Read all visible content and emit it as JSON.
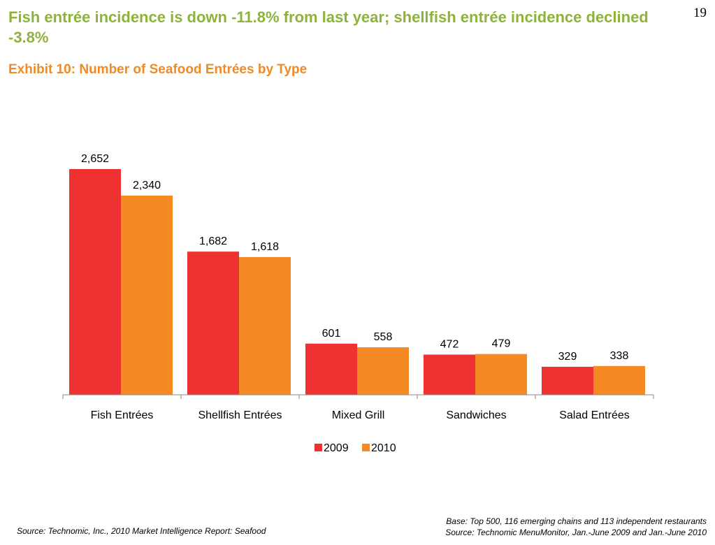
{
  "slide": {
    "headline": "Fish entrée incidence is down -11.8% from last year; shellfish entrée incidence declined -3.8%",
    "page_number": "19",
    "exhibit_title": "Exhibit 10: Number of Seafood Entrées by Type",
    "source_left": "Source: Technomic, Inc., 2010 Market Intelligence Report: Seafood",
    "base_note": "Base: Top 500, 116 emerging chains and 113 independent restaurants",
    "source_right": "Source: Technomic MenuMonitor, Jan.-June 2009 and Jan.-June 2010"
  },
  "chart_data": {
    "type": "bar",
    "title": "Exhibit 10: Number of Seafood Entrées by Type",
    "xlabel": "",
    "ylabel": "",
    "categories": [
      "Fish Entrées",
      "Shellfish Entrées",
      "Mixed Grill",
      "Sandwiches",
      "Salad Entrées"
    ],
    "series": [
      {
        "name": "2009",
        "values": [
          2652,
          1682,
          601,
          472,
          329
        ],
        "labels": [
          "2,652",
          "1,682",
          "601",
          "472",
          "329"
        ],
        "color": "#EE3232"
      },
      {
        "name": "2010",
        "values": [
          2340,
          1618,
          558,
          479,
          338
        ],
        "labels": [
          "2,340",
          "1,618",
          "558",
          "479",
          "338"
        ],
        "color": "#F58A24"
      }
    ],
    "ylim": [
      0,
      2750
    ],
    "grid": false,
    "legend_position": "bottom",
    "data_labels": true
  }
}
